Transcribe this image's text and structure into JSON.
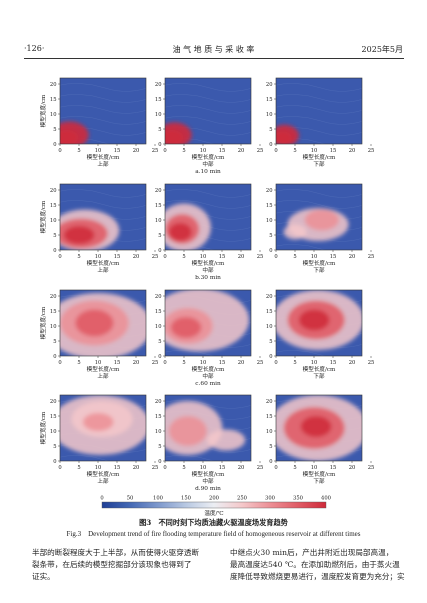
{
  "header": {
    "page_number": "·126·",
    "journal": "油 气 地 质 与 采 收 率",
    "date": "2025年5月"
  },
  "figure": {
    "y_axis_label": "模型宽度/cm",
    "x_axis_label": "模型长度/cm",
    "position_labels": [
      "上部",
      "中部",
      "下部"
    ],
    "x_ticks": [
      "0",
      "5",
      "10",
      "15",
      "20",
      "25"
    ],
    "y_ticks": [
      "0",
      "5",
      "10",
      "15",
      "20",
      "25"
    ],
    "row_captions": [
      "a.10 min",
      "b.30 min",
      "c.60 min",
      "d.90 min"
    ],
    "colorbar_title": "温度/℃",
    "colorbar_ticks": [
      "0",
      "50",
      "100",
      "150",
      "200",
      "250",
      "300",
      "350",
      "400"
    ],
    "colorbar_colors": [
      "#1f3f96",
      "#4468b4",
      "#7d98cc",
      "#b8c8e2",
      "#eceef3",
      "#f4c8ca",
      "#ec8f95",
      "#e05c66",
      "#cf2a3a"
    ],
    "caption_cn": "图3　不同时刻下均质油藏火驱温度场发育趋势",
    "caption_en": "Fig.3　Development trend of fire flooding temperature field of homogeneous reservoir at different times"
  },
  "body": {
    "left_lines": [
      "半部的断裂程度大于上半部，从而使得火驱穿透断",
      "裂条带，在后续的模型挖掘部分该现象也得到了",
      "证实。"
    ],
    "right_lines": [
      "中继点火30 min后，产出井附近出现局部高温，",
      "最高温度达540 ℃。在添加助燃剂后，由于蒸火温",
      "度降低导致燃烧更易进行，温度腔发育更为充分；实"
    ]
  }
}
